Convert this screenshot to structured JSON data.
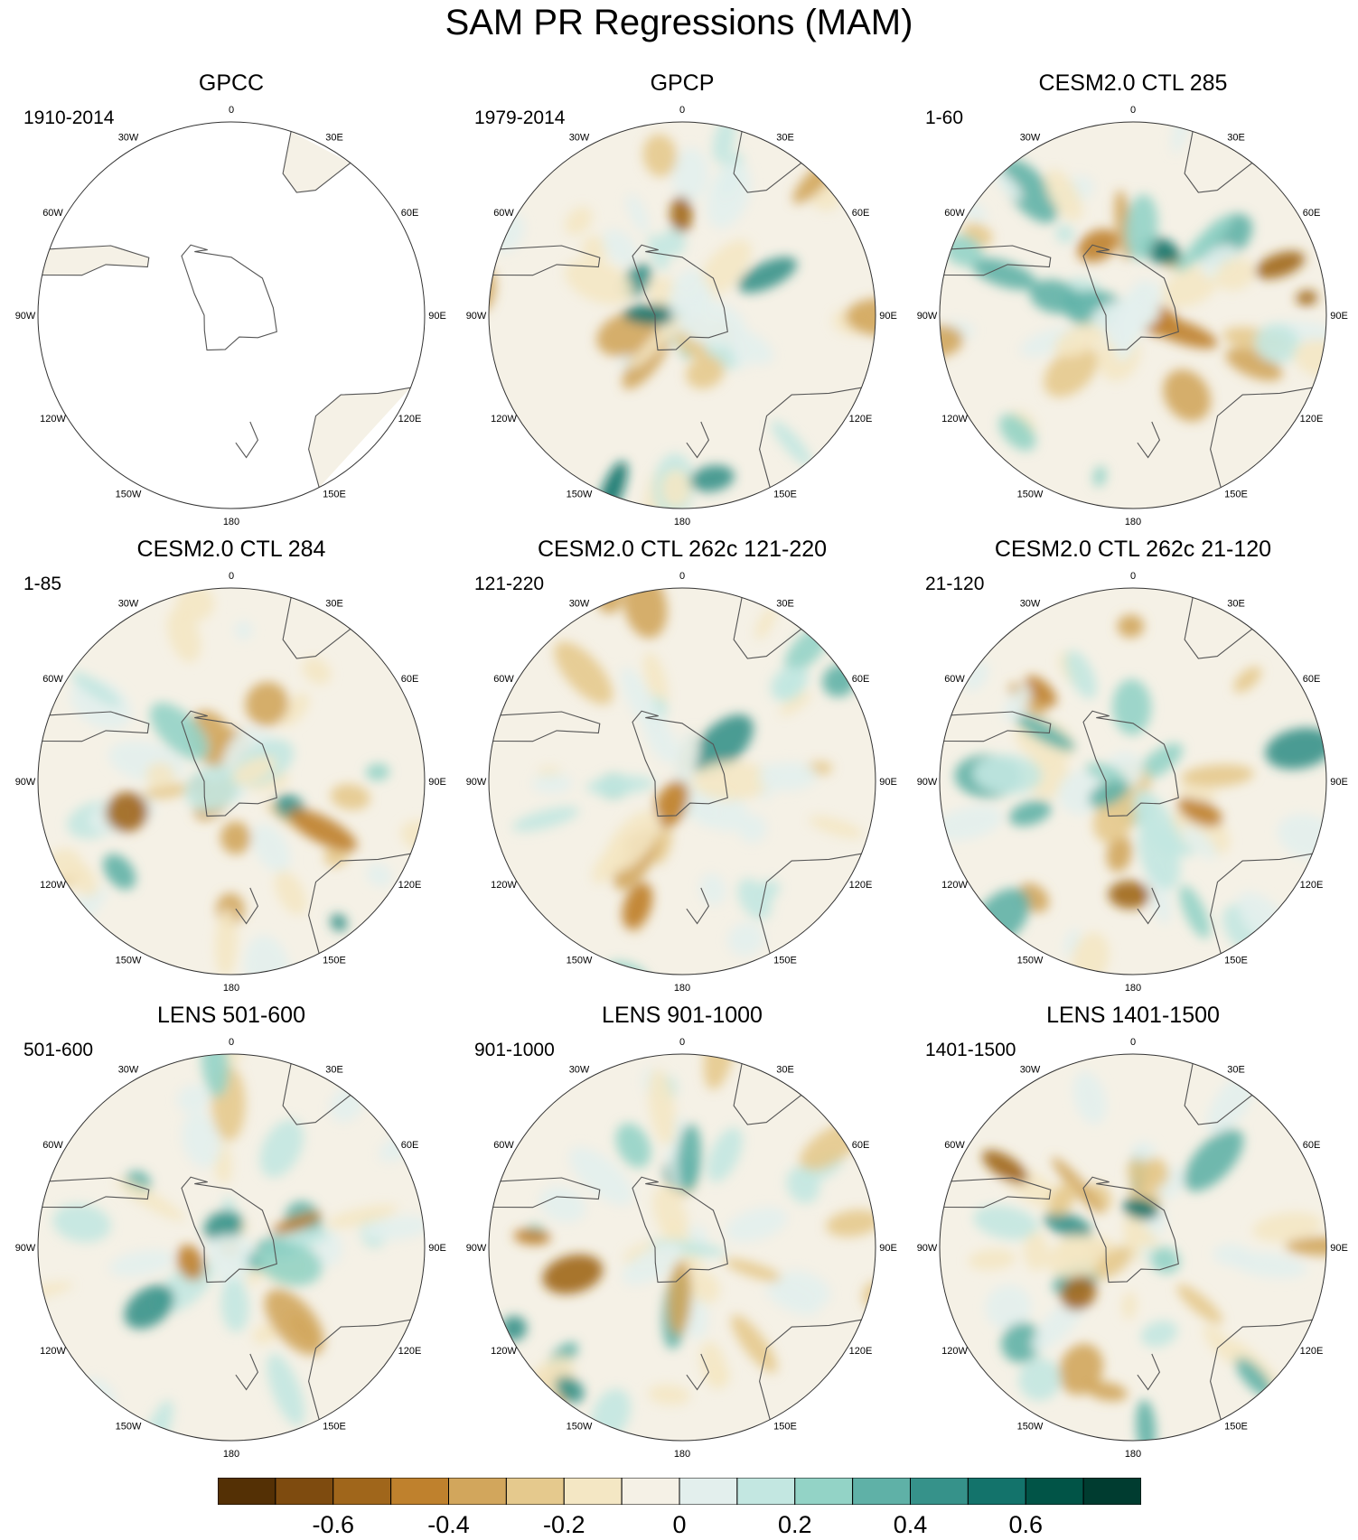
{
  "title": "SAM PR Regressions (MAM)",
  "colors": {
    "land": "#f4f0e4",
    "coast": "#555555",
    "levels": [
      "#543005",
      "#7e4b0f",
      "#a0661b",
      "#bf812d",
      "#d2a65c",
      "#e5c98d",
      "#f4e7c4",
      "#f5f1e6",
      "#e3efed",
      "#c3e7e1",
      "#93d3c6",
      "#5fb1a7",
      "#36928a",
      "#13736b",
      "#015447",
      "#003c30"
    ]
  },
  "longitude_labels": [
    "0",
    "30E",
    "60E",
    "90E",
    "120E",
    "150E",
    "180",
    "150W",
    "120W",
    "90W",
    "60W",
    "30W"
  ],
  "panels": [
    {
      "title": "GPCC",
      "period": "1910-2014",
      "observational": true
    },
    {
      "title": "GPCP",
      "period": "1979-2014"
    },
    {
      "title": "CESM2.0 CTL 285",
      "period": "1-60"
    },
    {
      "title": "CESM2.0 CTL 284",
      "period": "1-85"
    },
    {
      "title": "CESM2.0 CTL 262c 121-220",
      "period": "121-220"
    },
    {
      "title": "CESM2.0 CTL 262c 21-120",
      "period": "21-120"
    },
    {
      "title": "LENS 501-600",
      "period": "501-600"
    },
    {
      "title": "LENS 901-1000",
      "period": "901-1000"
    },
    {
      "title": "LENS 1401-1500",
      "period": "1401-1500"
    }
  ],
  "colorbar": {
    "labels": [
      "-0.6",
      "-0.4",
      "-0.2",
      "0",
      "0.2",
      "0.4",
      "0.6"
    ],
    "label_values": [
      -0.6,
      -0.4,
      -0.2,
      0,
      0.2,
      0.4,
      0.6
    ],
    "level_min": -0.8,
    "level_max": 0.8,
    "level_step": 0.1
  }
}
